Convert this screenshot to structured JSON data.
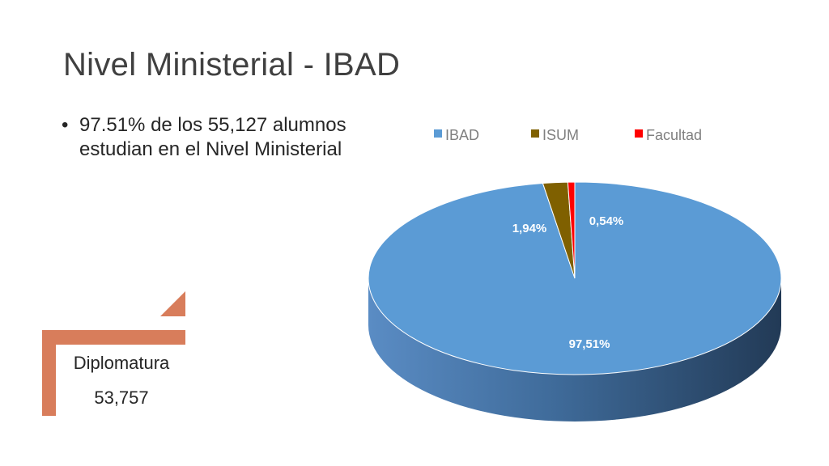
{
  "title": "Nivel Ministerial - IBAD",
  "bullet": {
    "marker": "•",
    "text": "97.51% de los 55,127 alumnos estudian en el Nivel Ministerial"
  },
  "callout": {
    "label": "Diplomatura",
    "value": "53,757",
    "color": "#d87d5b"
  },
  "chart_data": {
    "type": "pie",
    "style": "3d",
    "legend_position": "top",
    "categories": [
      "IBAD",
      "ISUM",
      "Facultad"
    ],
    "values": [
      97.51,
      1.94,
      0.54
    ],
    "data_labels": [
      "97,51%",
      "1,94%",
      "0,54%"
    ],
    "colors": [
      "#5b9bd5",
      "#7f6000",
      "#ff0000"
    ]
  }
}
